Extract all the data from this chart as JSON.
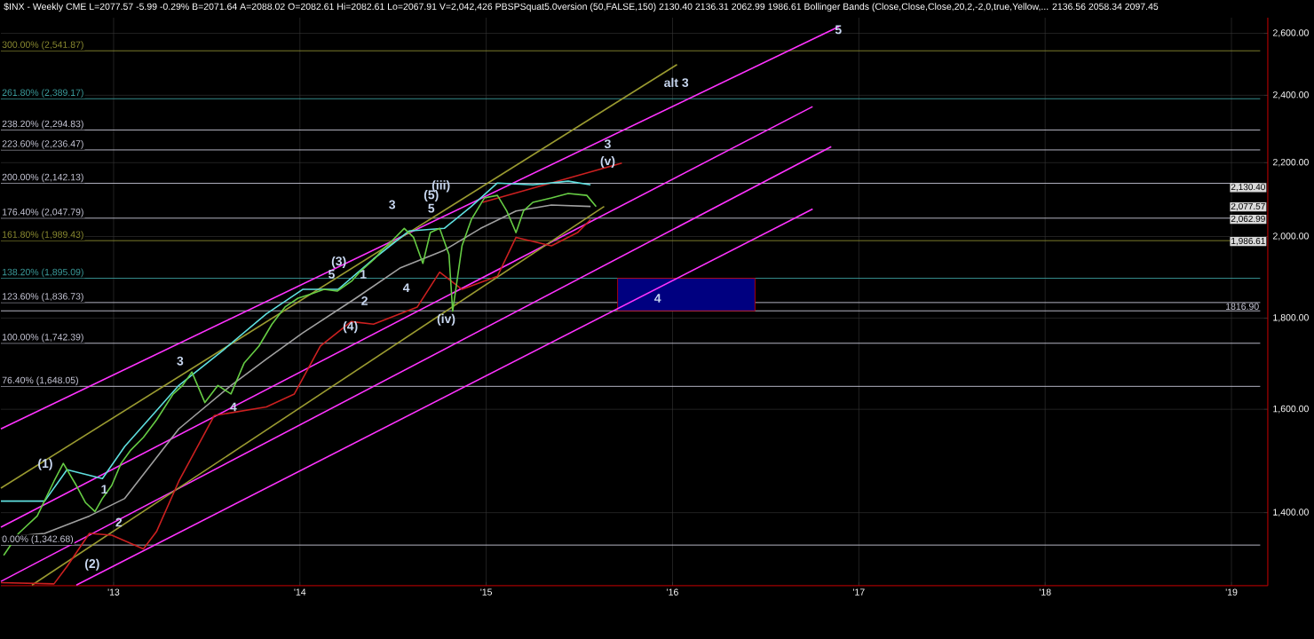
{
  "chart_data": {
    "type": "line",
    "title": "$INX - Weekly  CME  L=2077.57  -5.99  -0.29%  B=2071.64  A=2088.02  O=2082.61  Hi=2082.61  Lo=2067.91  V=2,042,426  PBSPSquat5.0version (50,FALSE,150)  2130.40  2136.31  2062.99  1986.61  Bollinger Bands (Close,Close,Close,20,2,-2,0,true,Yellow,...  2136.56  2058.34  2097.45",
    "log": true,
    "grid": true,
    "marker": "none",
    "line_style": "solid",
    "xlim": [
      2012.395,
      2019.195
    ],
    "ylim": [
      1274,
      2653
    ],
    "xticks": [
      {
        "value": 2013,
        "label": "'13"
      },
      {
        "value": 2014,
        "label": "'14"
      },
      {
        "value": 2015,
        "label": "'15"
      },
      {
        "value": 2016,
        "label": "'16"
      },
      {
        "value": 2017,
        "label": "'17"
      },
      {
        "value": 2018,
        "label": "'18"
      },
      {
        "value": 2019,
        "label": "'19"
      }
    ],
    "yticks": [
      {
        "value": 1400,
        "label": "1,400.00"
      },
      {
        "value": 1600,
        "label": "1,600.00"
      },
      {
        "value": 1800,
        "label": "1,800.00"
      },
      {
        "value": 2000,
        "label": "2,000.00"
      },
      {
        "value": 2200,
        "label": "2,200.00"
      },
      {
        "value": 2400,
        "label": "2,400.00"
      },
      {
        "value": 2600,
        "label": "2,600.00"
      }
    ],
    "series": [
      {
        "type": "bar",
        "color": "#000080",
        "x": [
          2016.074
        ],
        "values": [
          78.19
        ],
        "base": [
          1816.9
        ]
      },
      {
        "color": "#ff33ff",
        "x": [
          2012.395,
          2016.895
        ],
        "values": [
          1560,
          2623
        ]
      },
      {
        "color": "#ff33ff",
        "x": [
          2012.395,
          2016.752
        ],
        "values": [
          1374,
          2365
        ]
      },
      {
        "color": "#ff33ff",
        "x": [
          2012.395,
          2016.852
        ],
        "values": [
          1281,
          2246
        ]
      },
      {
        "color": "#ff33ff",
        "x": [
          2012.8,
          2016.752
        ],
        "values": [
          1275,
          2072
        ]
      },
      {
        "color": "#9a9a30",
        "x": [
          2012.395,
          2016.024
        ],
        "values": [
          1445,
          2497
        ]
      },
      {
        "color": "#9a9a30",
        "x": [
          2012.562,
          2015.633
        ],
        "values": [
          1275,
          2079
        ]
      },
      {
        "color": "#cc2020",
        "x": [
          2014.98,
          2015.728
        ],
        "values": [
          2090,
          2199
        ]
      },
      {
        "color": "#a0a0a0",
        "x": [
          2012.395,
          2012.63,
          2012.87,
          2013.06,
          2013.35,
          2013.63,
          2013.82,
          2014.015,
          2014.3,
          2014.54,
          2014.775,
          2014.97,
          2015.16,
          2015.35,
          2015.56
        ],
        "values": [
          1356,
          1363,
          1394,
          1426,
          1560,
          1650,
          1707,
          1766,
          1847,
          1921,
          1965,
          2021,
          2067,
          2083,
          2079
        ]
      },
      {
        "color": "#cc2020",
        "x": [
          2012.395,
          2012.68,
          2012.75,
          2012.87,
          2012.99,
          2013.16,
          2013.23,
          2013.35,
          2013.54,
          2013.82,
          2013.97,
          2014.11,
          2014.275,
          2014.395,
          2014.63,
          2014.75,
          2014.87,
          2015.06,
          2015.16,
          2015.35,
          2015.49,
          2015.56
        ],
        "values": [
          1279,
          1277,
          1306,
          1363,
          1360,
          1336,
          1366,
          1458,
          1587,
          1605,
          1632,
          1736,
          1792,
          1786,
          1826,
          1910,
          1868,
          1900,
          1998,
          1976,
          2010,
          2044
        ]
      },
      {
        "color": "#5fe0e0",
        "x": [
          2012.395,
          2012.63,
          2012.75,
          2012.94,
          2013.06,
          2013.35,
          2013.585,
          2013.82,
          2014.015,
          2014.205,
          2014.395,
          2014.585,
          2014.775,
          2014.92,
          2015.06,
          2015.25,
          2015.44,
          2015.56
        ],
        "values": [
          1421,
          1421,
          1480,
          1463,
          1525,
          1650,
          1726,
          1810,
          1868,
          1868,
          1943,
          2014,
          2021,
          2079,
          2143,
          2138,
          2148,
          2138
        ]
      },
      {
        "color": "#66cc44",
        "x": [
          2012.41,
          2012.49,
          2012.59,
          2012.68,
          2012.73,
          2012.8,
          2012.85,
          2012.9,
          2012.94,
          2012.99,
          2013.04,
          2013.09,
          2013.16,
          2013.23,
          2013.32,
          2013.37,
          2013.42,
          2013.49,
          2013.56,
          2013.63,
          2013.7,
          2013.78,
          2013.85,
          2013.92,
          2013.99,
          2014.06,
          2014.13,
          2014.2,
          2014.28,
          2014.32,
          2014.4,
          2014.44,
          2014.49,
          2014.56,
          2014.61,
          2014.66,
          2014.7,
          2014.75,
          2014.8,
          2014.82,
          2014.87,
          2014.92,
          2014.99,
          2015.06,
          2015.11,
          2015.16,
          2015.2,
          2015.25,
          2015.35,
          2015.44,
          2015.54,
          2015.59
        ],
        "values": [
          1325,
          1363,
          1394,
          1458,
          1492,
          1450,
          1418,
          1402,
          1426,
          1450,
          1492,
          1517,
          1543,
          1578,
          1632,
          1650,
          1679,
          1614,
          1650,
          1632,
          1698,
          1736,
          1786,
          1826,
          1847,
          1857,
          1868,
          1864,
          1889,
          1910,
          1943,
          1965,
          1987,
          2021,
          1998,
          1932,
          2010,
          2021,
          1954,
          1816,
          1976,
          2044,
          2102,
          2109,
          2067,
          2010,
          2067,
          2090,
          2102,
          2114,
          2109,
          2079
        ]
      }
    ],
    "ref_lines": [
      {
        "axis": "y",
        "value": 2541.87,
        "label": "300.00% (2,541.87)",
        "color": "#8a8a30"
      },
      {
        "axis": "y",
        "value": 2389.17,
        "label": "261.80% (2,389.17)",
        "color": "#3a9a9a"
      },
      {
        "axis": "y",
        "value": 2294.83,
        "label": "238.20% (2,294.83)",
        "color": "#c8c8d8"
      },
      {
        "axis": "y",
        "value": 2236.47,
        "label": "223.60% (2,236.47)",
        "color": "#c8c8d8"
      },
      {
        "axis": "y",
        "value": 2142.13,
        "label": "200.00% (2,142.13)",
        "color": "#c8c8d8"
      },
      {
        "axis": "y",
        "value": 2047.79,
        "label": "176.40% (2,047.79)",
        "color": "#c8c8d8"
      },
      {
        "axis": "y",
        "value": 1989.43,
        "label": "161.80% (1,989.43)",
        "color": "#8a8a30"
      },
      {
        "axis": "y",
        "value": 1895.09,
        "label": "138.20% (1,895.09)",
        "color": "#3a9a9a"
      },
      {
        "axis": "y",
        "value": 1836.73,
        "label": "123.60% (1,836.73)",
        "color": "#c8c8d8"
      },
      {
        "axis": "y",
        "value": 1816.9,
        "label": "1816.90",
        "color": "#c8c8d8"
      },
      {
        "axis": "y",
        "value": 1742.39,
        "label": "100.00% (1,742.39)",
        "color": "#c8c8d8"
      },
      {
        "axis": "y",
        "value": 1648.05,
        "label": "76.40% (1,648.05)",
        "color": "#c8c8d8"
      },
      {
        "axis": "y",
        "value": 1342.68,
        "label": "0.00% (1,342.68)",
        "color": "#c8c8d8"
      }
    ],
    "annotations": [
      "(1)",
      "(2)",
      "1",
      "2",
      "3",
      "4",
      "(3)",
      "5",
      "1",
      "2",
      "(4)",
      "3",
      "4",
      "5",
      "(5)",
      "(iii)",
      "(iv)",
      "(v)",
      "3",
      "alt 3",
      "4",
      "5",
      "2,130.40",
      "2,077.57",
      "2,062.99",
      "1,986.61"
    ]
  }
}
